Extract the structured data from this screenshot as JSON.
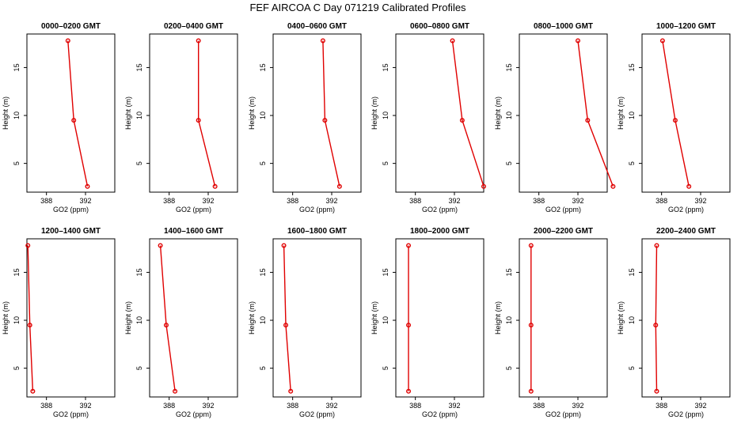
{
  "figure": {
    "title": "FEF AIRCOA C  Day 071219  Calibrated Profiles"
  },
  "chart_data": [
    {
      "type": "line",
      "title": "0000–0200 GMT",
      "xlabel": "GO2 (ppm)",
      "ylabel": "Height (m)",
      "xlim": [
        386,
        395
      ],
      "ylim": [
        2,
        18.5
      ],
      "xticks": [
        388,
        392
      ],
      "yticks": [
        5,
        10,
        15
      ],
      "x": [
        392.2,
        390.8,
        390.2
      ],
      "y": [
        2.6,
        9.5,
        17.8
      ]
    },
    {
      "type": "line",
      "title": "0200–0400 GMT",
      "xlabel": "GO2 (ppm)",
      "ylabel": "Height (m)",
      "xlim": [
        386,
        395
      ],
      "ylim": [
        2,
        18.5
      ],
      "xticks": [
        388,
        392
      ],
      "yticks": [
        5,
        10,
        15
      ],
      "x": [
        392.7,
        391.0,
        391.0
      ],
      "y": [
        2.6,
        9.5,
        17.8
      ]
    },
    {
      "type": "line",
      "title": "0400–0600 GMT",
      "xlabel": "GO2 (ppm)",
      "ylabel": "Height (m)",
      "xlim": [
        386,
        395
      ],
      "ylim": [
        2,
        18.5
      ],
      "xticks": [
        388,
        392
      ],
      "yticks": [
        5,
        10,
        15
      ],
      "x": [
        392.8,
        391.3,
        391.1
      ],
      "y": [
        2.6,
        9.5,
        17.8
      ]
    },
    {
      "type": "line",
      "title": "0600–0800 GMT",
      "xlabel": "GO2 (ppm)",
      "ylabel": "Height (m)",
      "xlim": [
        386,
        395
      ],
      "ylim": [
        2,
        18.5
      ],
      "xticks": [
        388,
        392
      ],
      "yticks": [
        5,
        10,
        15
      ],
      "x": [
        395.0,
        392.8,
        391.8
      ],
      "y": [
        2.6,
        9.5,
        17.8
      ]
    },
    {
      "type": "line",
      "title": "0800–1000 GMT",
      "xlabel": "GO2 (ppm)",
      "ylabel": "Height (m)",
      "xlim": [
        386,
        395
      ],
      "ylim": [
        2,
        18.5
      ],
      "xticks": [
        388,
        392
      ],
      "yticks": [
        5,
        10,
        15
      ],
      "x": [
        395.6,
        393.0,
        392.0
      ],
      "y": [
        2.6,
        9.5,
        17.8
      ]
    },
    {
      "type": "line",
      "title": "1000–1200 GMT",
      "xlabel": "GO2 (ppm)",
      "ylabel": "Height (m)",
      "xlim": [
        386,
        395
      ],
      "ylim": [
        2,
        18.5
      ],
      "xticks": [
        388,
        392
      ],
      "yticks": [
        5,
        10,
        15
      ],
      "x": [
        390.8,
        389.4,
        388.1
      ],
      "y": [
        2.6,
        9.5,
        17.8
      ]
    },
    {
      "type": "line",
      "title": "1200–1400 GMT",
      "xlabel": "GO2 (ppm)",
      "ylabel": "Height (m)",
      "xlim": [
        386,
        395
      ],
      "ylim": [
        2,
        18.5
      ],
      "xticks": [
        388,
        392
      ],
      "yticks": [
        5,
        10,
        15
      ],
      "x": [
        386.6,
        386.3,
        386.1
      ],
      "y": [
        2.6,
        9.5,
        17.8
      ]
    },
    {
      "type": "line",
      "title": "1400–1600 GMT",
      "xlabel": "GO2 (ppm)",
      "ylabel": "Height (m)",
      "xlim": [
        386,
        395
      ],
      "ylim": [
        2,
        18.5
      ],
      "xticks": [
        388,
        392
      ],
      "yticks": [
        5,
        10,
        15
      ],
      "x": [
        388.6,
        387.7,
        387.1
      ],
      "y": [
        2.6,
        9.5,
        17.8
      ]
    },
    {
      "type": "line",
      "title": "1600–1800 GMT",
      "xlabel": "GO2 (ppm)",
      "ylabel": "Height (m)",
      "xlim": [
        386,
        395
      ],
      "ylim": [
        2,
        18.5
      ],
      "xticks": [
        388,
        392
      ],
      "yticks": [
        5,
        10,
        15
      ],
      "x": [
        387.8,
        387.3,
        387.1
      ],
      "y": [
        2.6,
        9.5,
        17.8
      ]
    },
    {
      "type": "line",
      "title": "1800–2000 GMT",
      "xlabel": "GO2 (ppm)",
      "ylabel": "Height (m)",
      "xlim": [
        386,
        395
      ],
      "ylim": [
        2,
        18.5
      ],
      "xticks": [
        388,
        392
      ],
      "yticks": [
        5,
        10,
        15
      ],
      "x": [
        387.3,
        387.3,
        387.3
      ],
      "y": [
        2.6,
        9.5,
        17.8
      ]
    },
    {
      "type": "line",
      "title": "2000–2200 GMT",
      "xlabel": "GO2 (ppm)",
      "ylabel": "Height (m)",
      "xlim": [
        386,
        395
      ],
      "ylim": [
        2,
        18.5
      ],
      "xticks": [
        388,
        392
      ],
      "yticks": [
        5,
        10,
        15
      ],
      "x": [
        387.2,
        387.2,
        387.2
      ],
      "y": [
        2.6,
        9.5,
        17.8
      ]
    },
    {
      "type": "line",
      "title": "2200–2400 GMT",
      "xlabel": "GO2 (ppm)",
      "ylabel": "Height (m)",
      "xlim": [
        386,
        395
      ],
      "ylim": [
        2,
        18.5
      ],
      "xticks": [
        388,
        392
      ],
      "yticks": [
        5,
        10,
        15
      ],
      "x": [
        387.5,
        387.4,
        387.5
      ],
      "y": [
        2.6,
        9.5,
        17.8
      ]
    }
  ]
}
